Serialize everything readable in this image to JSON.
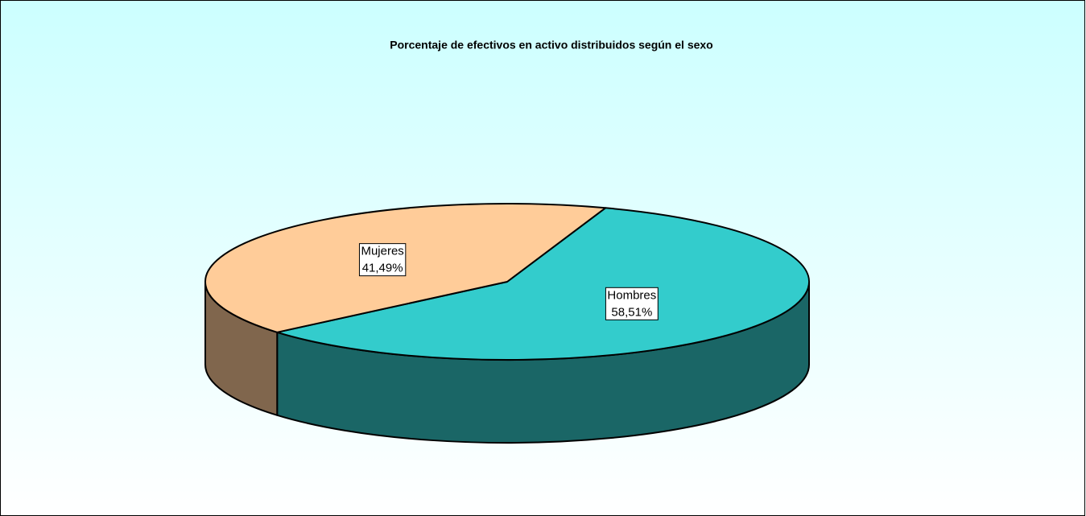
{
  "chart_data": {
    "type": "pie",
    "title": "Porcentaje de efectivos en activo distribuidos según el sexo",
    "categories": [
      "Hombres",
      "Mujeres"
    ],
    "values": [
      58.51,
      41.49
    ],
    "value_labels": [
      "58,51%",
      "41,49%"
    ],
    "colors": [
      "#33CCCC",
      "#FFCC99"
    ]
  }
}
